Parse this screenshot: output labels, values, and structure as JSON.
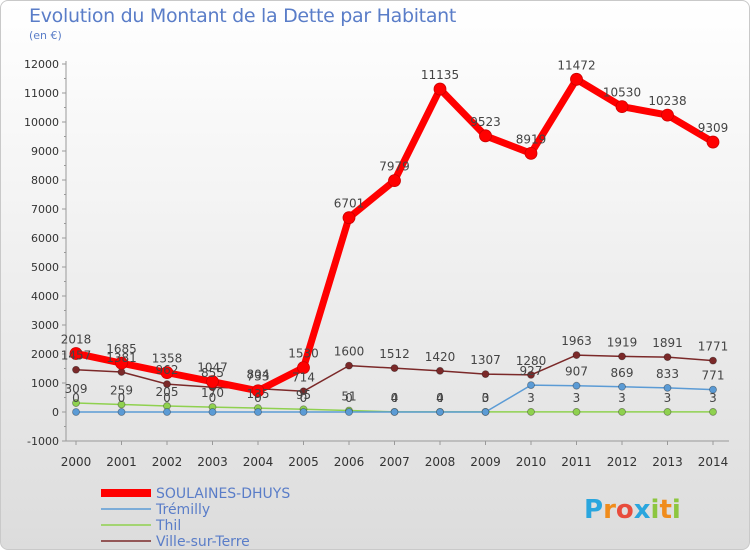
{
  "chart_data": {
    "type": "line",
    "title": "Evolution du Montant de la Dette par Habitant",
    "subtitle": "(en €)",
    "categories": [
      "2000",
      "2001",
      "2002",
      "2003",
      "2004",
      "2005",
      "2006",
      "2007",
      "2008",
      "2009",
      "2010",
      "2011",
      "2012",
      "2013",
      "2014"
    ],
    "ylim": [
      -1000,
      12000
    ],
    "yticks": [
      -1000,
      0,
      1000,
      2000,
      3000,
      4000,
      5000,
      6000,
      7000,
      8000,
      9000,
      10000,
      11000,
      12000
    ],
    "grid": false,
    "legend_position": "bottom-left",
    "series": [
      {
        "name": "SOULAINES-DHUYS",
        "color": "#ff0000",
        "values": [
          2018,
          1685,
          1358,
          1047,
          733,
          1530,
          6701,
          7979,
          11135,
          9523,
          8919,
          11472,
          10530,
          10238,
          9309
        ],
        "labels": [
          "2018",
          "1685",
          "1358",
          "1047",
          "733",
          "1530",
          "6701",
          "7979",
          "11135",
          "9523",
          "8919",
          "11472",
          "10530",
          "10238",
          "9309"
        ]
      },
      {
        "name": "Trémilly",
        "color": "#5b9bd5",
        "values": [
          0,
          0,
          0,
          0,
          0,
          0,
          0,
          0,
          0,
          0,
          927,
          907,
          869,
          833,
          771
        ],
        "labels": [
          "0",
          "0",
          "0",
          "0",
          "0",
          "0",
          "0",
          "0",
          "0",
          "0",
          "927",
          "907",
          "869",
          "833",
          "771"
        ]
      },
      {
        "name": "Thil",
        "color": "#8fd14f",
        "values": [
          309,
          259,
          205,
          170,
          135,
          95,
          51,
          4,
          4,
          3,
          3,
          3,
          3,
          3,
          3
        ],
        "labels": [
          "309",
          "259",
          "205",
          "170",
          "135",
          "95",
          "51",
          "4",
          "4",
          "3",
          "3",
          "3",
          "3",
          "3",
          "3"
        ]
      },
      {
        "name": "Ville-sur-Terre",
        "color": "#7b2929",
        "values": [
          1457,
          1381,
          962,
          855,
          804,
          714,
          1600,
          1512,
          1420,
          1307,
          1280,
          1963,
          1919,
          1891,
          1771
        ],
        "labels": [
          "1457",
          "1381",
          "962",
          "855",
          "804",
          "714",
          "1600",
          "1512",
          "1420",
          "1307",
          "1280",
          "1963",
          "1919",
          "1891",
          "1771"
        ]
      }
    ]
  },
  "brand": {
    "text": "Proxiti",
    "letters": [
      "P",
      "r",
      "o",
      "x",
      "i",
      "t",
      "i"
    ],
    "colors": [
      "#2aa6de",
      "#f08c1c",
      "#e84c3d",
      "#2aa6de",
      "#8dc63f",
      "#f08c1c",
      "#8dc63f"
    ]
  }
}
